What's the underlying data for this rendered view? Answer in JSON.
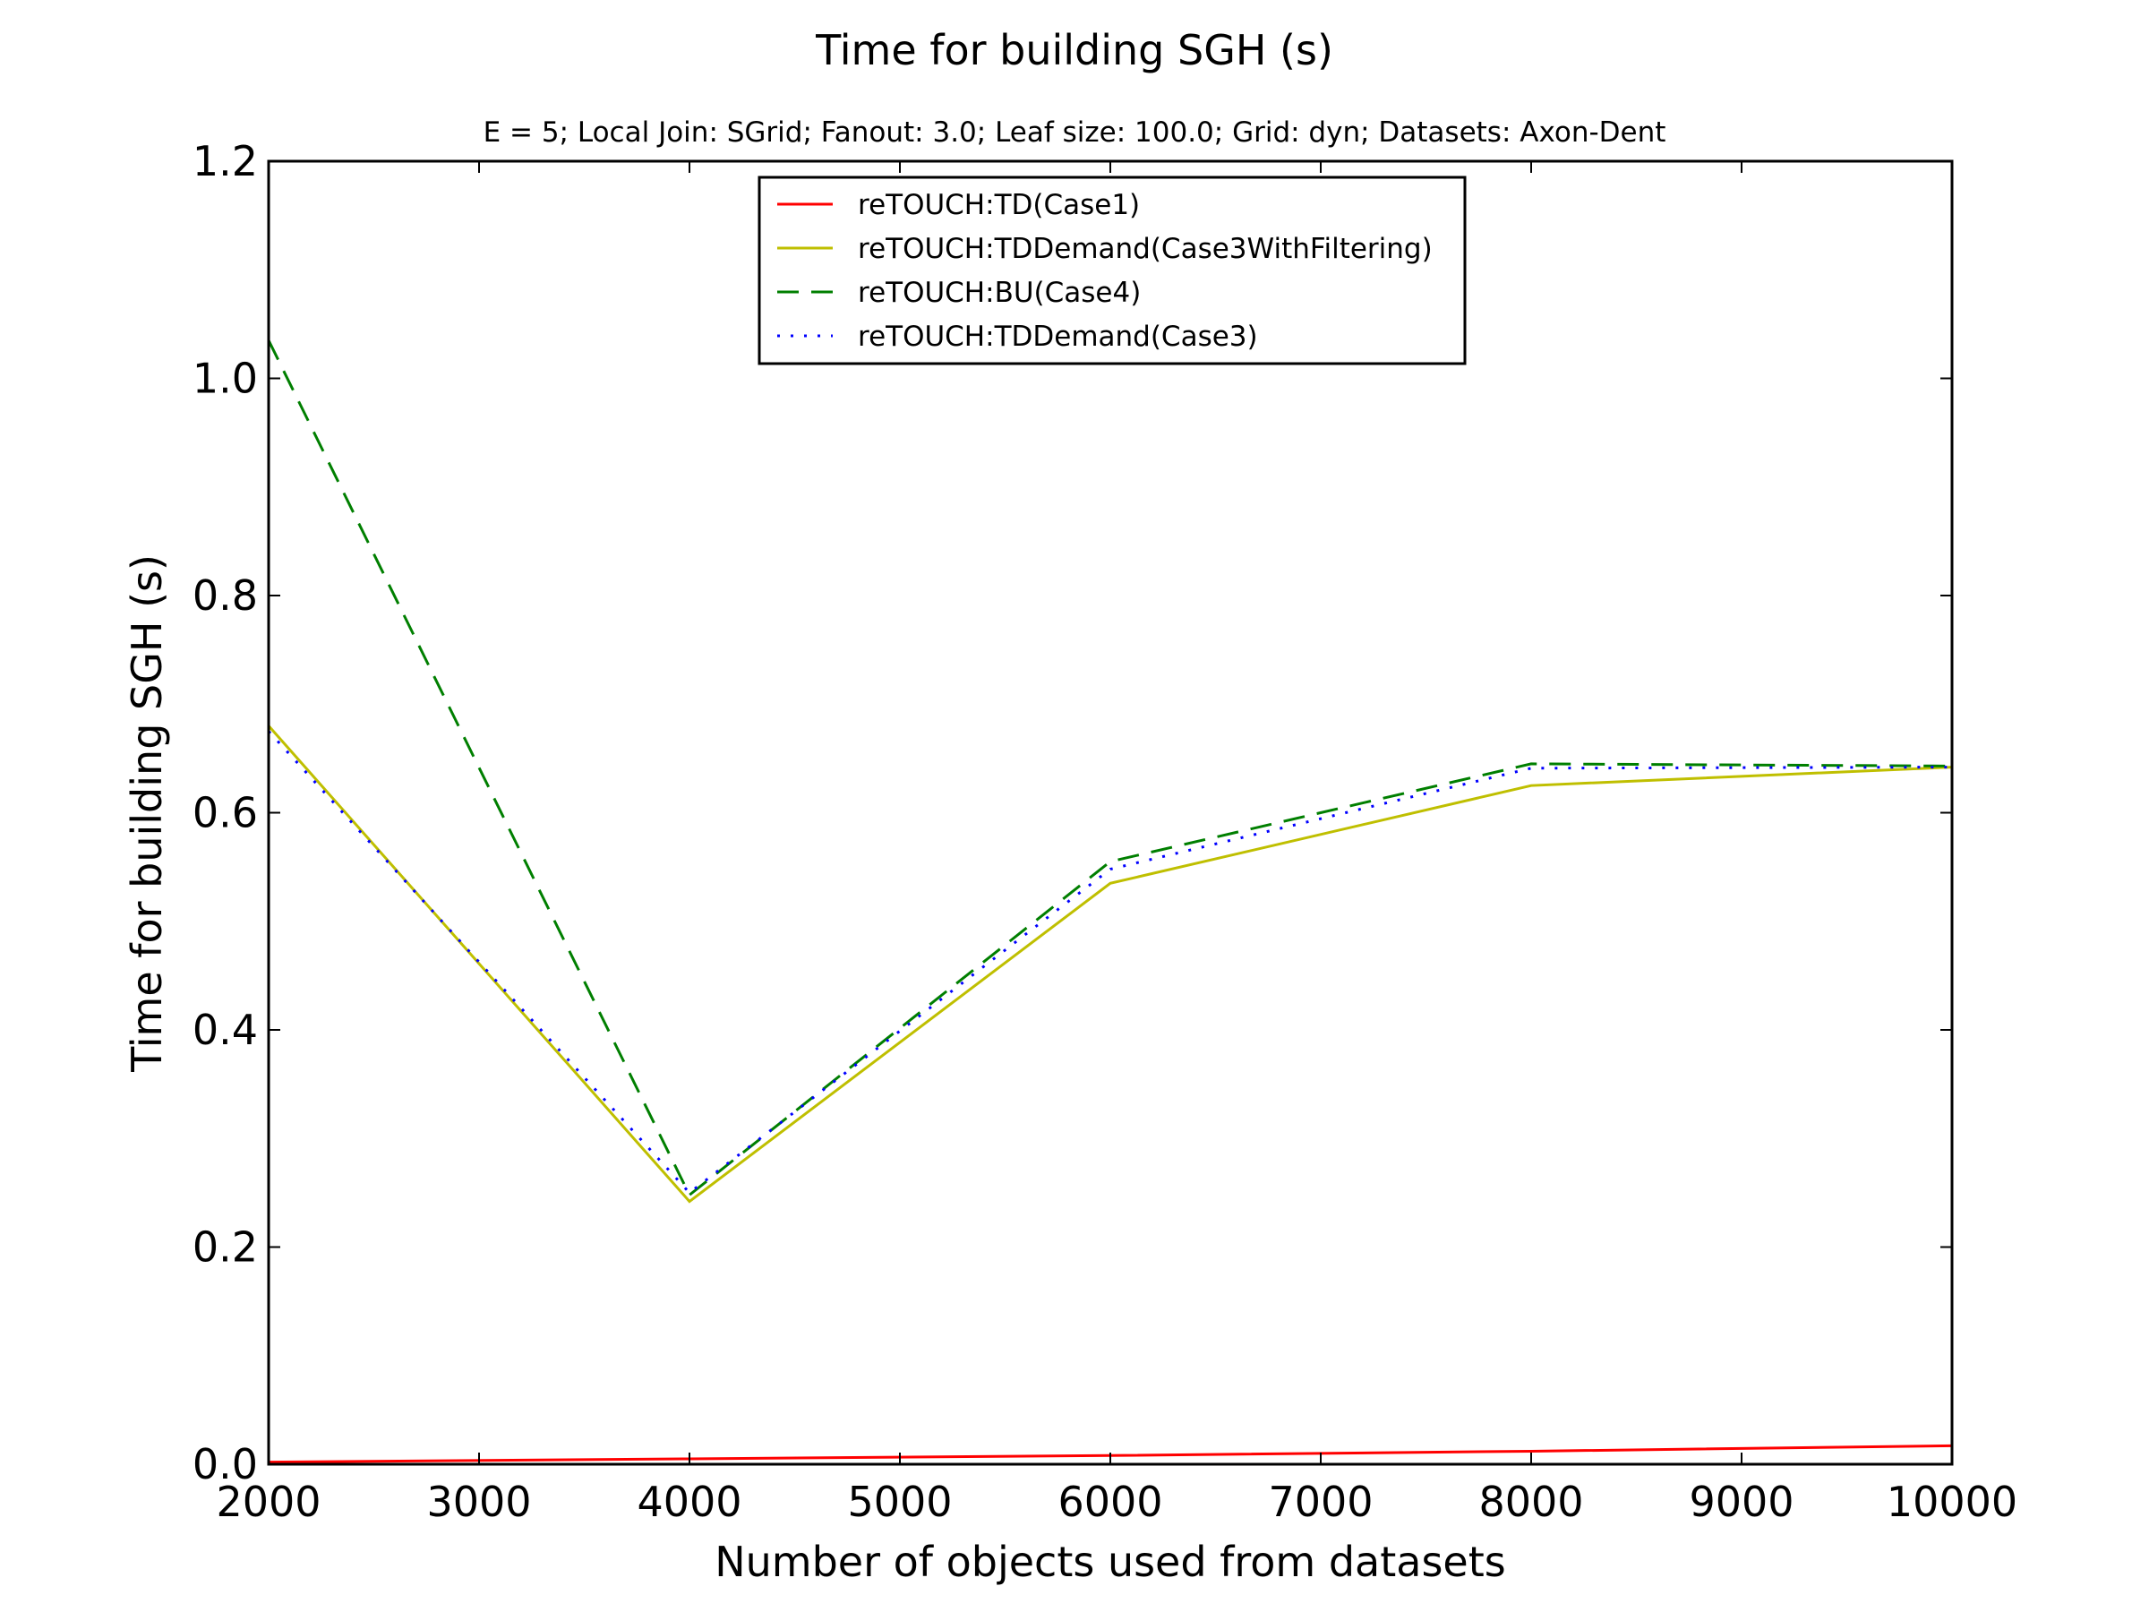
{
  "chart_data": {
    "type": "line",
    "title": "Time for building SGH (s)",
    "subtitle": "E = 5; Local Join: SGrid; Fanout: 3.0; Leaf size: 100.0; Grid: dyn; Datasets: Axon-Dent",
    "xlabel": "Number of objects used from datasets",
    "ylabel": "Time for building SGH (s)",
    "xlim": [
      2000,
      10000
    ],
    "ylim": [
      0.0,
      1.2
    ],
    "xticks": [
      2000,
      3000,
      4000,
      5000,
      6000,
      7000,
      8000,
      9000,
      10000
    ],
    "yticks": [
      0.0,
      0.2,
      0.4,
      0.6,
      0.8,
      1.0,
      1.2
    ],
    "grid": false,
    "legend_position": "top-center",
    "x": [
      2000,
      4000,
      6000,
      8000,
      10000
    ],
    "series": [
      {
        "name": "reTOUCH:TD(Case1)",
        "color": "#ff0000",
        "style": "solid",
        "values": [
          0.002,
          0.005,
          0.008,
          0.012,
          0.017
        ]
      },
      {
        "name": "reTOUCH:TDDemand(Case3WithFiltering)",
        "color": "#bfbf00",
        "style": "solid",
        "values": [
          0.68,
          0.242,
          0.535,
          0.625,
          0.642
        ]
      },
      {
        "name": "reTOUCH:BU(Case4)",
        "color": "#007f00",
        "style": "dashed",
        "values": [
          1.035,
          0.248,
          0.555,
          0.645,
          0.643
        ]
      },
      {
        "name": "reTOUCH:TDDemand(Case3)",
        "color": "#0000ff",
        "style": "dotted",
        "values": [
          0.675,
          0.25,
          0.548,
          0.641,
          0.642
        ]
      }
    ]
  }
}
